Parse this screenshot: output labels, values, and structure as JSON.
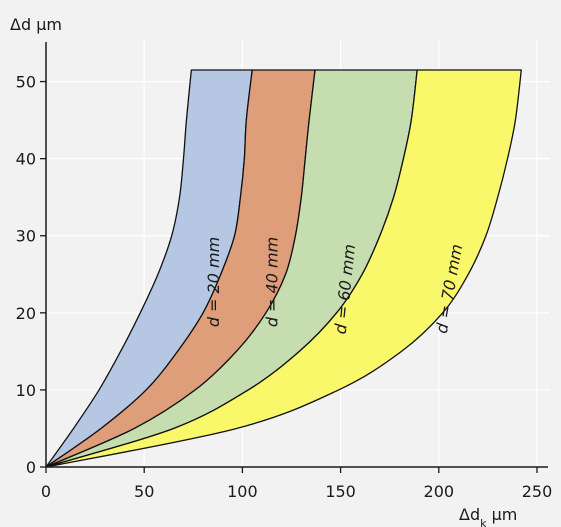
{
  "chart_data": {
    "type": "area",
    "xlabel_main": "Δd",
    "xlabel_sub": "k",
    "xlabel_unit": " μm",
    "ylabel": "Δd μm",
    "xlim": [
      0,
      250
    ],
    "ylim": [
      0,
      51.5
    ],
    "x_ticks": [
      0,
      50,
      100,
      150,
      200,
      250
    ],
    "y_ticks": [
      0,
      10,
      20,
      30,
      40,
      50
    ],
    "grid": true,
    "y_values": [
      0,
      5,
      10,
      15,
      20,
      25,
      30,
      35,
      40,
      45,
      51.5
    ],
    "bands": [
      {
        "label": "d = 20 mm",
        "color": "#b5c7e3",
        "left_x": [
          0,
          14,
          27,
          38,
          48,
          57,
          64,
          68,
          70,
          71.5,
          74
        ],
        "right_x": [
          0,
          28,
          51,
          67,
          80,
          89,
          96,
          99,
          101,
          102,
          105
        ]
      },
      {
        "label": "d = 40 mm",
        "color": "#de9e7a",
        "left_x": [
          0,
          28,
          51,
          67,
          80,
          89,
          96,
          99,
          101,
          102,
          105
        ],
        "right_x": [
          0,
          45,
          76,
          97,
          112,
          122,
          127,
          130,
          132,
          134,
          137
        ]
      },
      {
        "label": "d = 60 mm",
        "color": "#c6ddb0",
        "left_x": [
          0,
          45,
          76,
          97,
          112,
          122,
          127,
          130,
          132,
          134,
          137
        ],
        "right_x": [
          0,
          65,
          103,
          129,
          148,
          161,
          170,
          177,
          182,
          186,
          189
        ]
      },
      {
        "label": "d = 70 mm",
        "color": "#f9f76a",
        "left_x": [
          0,
          65,
          103,
          129,
          148,
          161,
          170,
          177,
          182,
          186,
          189
        ],
        "right_x": [
          0,
          97,
          149,
          181,
          202,
          215,
          224,
          230,
          235,
          239,
          242
        ]
      }
    ]
  }
}
